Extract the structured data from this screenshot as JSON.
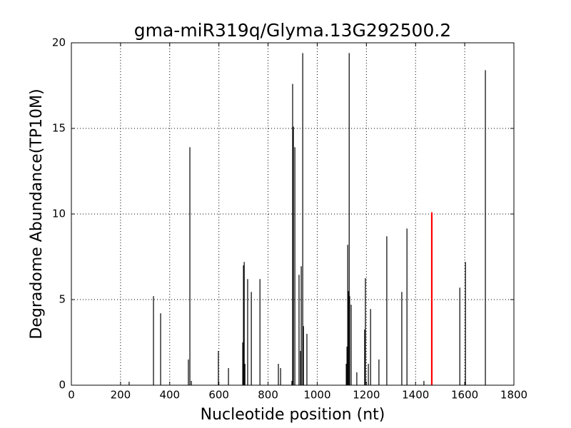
{
  "chart_data": {
    "type": "spike",
    "title": "gma-miR319q/Glyma.13G292500.2",
    "xlabel": "Nucleotide position (nt)",
    "ylabel": "Degradome Abundance(TP10M)",
    "x": [
      235,
      334,
      363,
      476,
      482,
      488,
      598,
      639,
      697,
      700,
      703,
      706,
      717,
      732,
      767,
      842,
      851,
      897,
      900,
      903,
      909,
      926,
      932,
      935,
      941,
      944,
      958,
      1118,
      1121,
      1124,
      1127,
      1130,
      1132,
      1138,
      1161,
      1193,
      1196,
      1208,
      1217,
      1251,
      1283,
      1344,
      1365,
      1434,
      1580,
      1603,
      1684
    ],
    "values": [
      0.2,
      5.2,
      4.2,
      1.5,
      13.9,
      0.25,
      2.0,
      1.0,
      2.5,
      7.0,
      7.2,
      1.25,
      6.2,
      5.45,
      6.2,
      1.25,
      1.0,
      0.25,
      17.6,
      15.1,
      13.9,
      6.45,
      2.0,
      6.95,
      19.4,
      3.45,
      3.0,
      1.25,
      2.25,
      8.2,
      5.5,
      19.4,
      5.2,
      4.7,
      0.75,
      3.25,
      6.25,
      1.25,
      4.45,
      1.5,
      8.7,
      5.45,
      9.15,
      0.25,
      5.7,
      7.2,
      18.4
    ],
    "color": "#000000",
    "target": {
      "x": 1466,
      "value": 10.1,
      "color": "#ff0000"
    },
    "xlim": [
      0,
      1800
    ],
    "xticks": [
      0,
      200,
      400,
      600,
      800,
      1000,
      1200,
      1400,
      1600,
      1800
    ],
    "ylim": [
      0,
      20
    ],
    "yticks": [
      0,
      5,
      10,
      15,
      20
    ],
    "grid": true
  }
}
